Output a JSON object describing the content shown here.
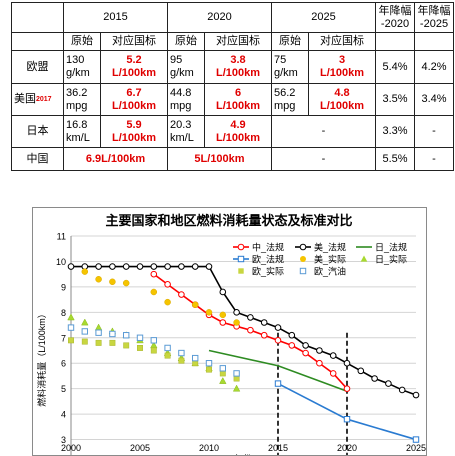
{
  "table": {
    "headers": {
      "y2015": "2015",
      "y2020": "2020",
      "y2025": "2025",
      "rate2020": [
        "年降幅",
        "-2020"
      ],
      "rate2025": [
        "年降幅",
        "-2025"
      ]
    },
    "subheaders": {
      "orig": "原始",
      "target": "对应国标"
    },
    "rows": {
      "eu": {
        "name": "欧盟",
        "o2015": [
          "130",
          "g/km"
        ],
        "t2015": [
          "5.2",
          "L/100km"
        ],
        "o2020": [
          "95",
          "g/km"
        ],
        "t2020": [
          "3.8",
          "L/100km"
        ],
        "o2025": [
          "75",
          "g/km"
        ],
        "t2025": [
          "3",
          "L/100km"
        ],
        "r2020": "5.4%",
        "r2025": "4.2%"
      },
      "us": {
        "name": "美国",
        "sup": "2017",
        "o2015": [
          "36.2",
          "mpg"
        ],
        "t2015": [
          "6.7",
          "L/100km"
        ],
        "o2020": [
          "44.8",
          "mpg"
        ],
        "t2020": [
          "6",
          "L/100km"
        ],
        "o2025": [
          "56.2",
          "mpg"
        ],
        "t2025": [
          "4.8",
          "L/100km"
        ],
        "r2020": "3.5%",
        "r2025": "3.4%"
      },
      "jp": {
        "name": "日本",
        "o2015": [
          "16.8",
          "km/L"
        ],
        "t2015": [
          "5.9",
          "L/100km"
        ],
        "o2020": [
          "20.3",
          "km/L"
        ],
        "t2020": [
          "4.9",
          "L/100km"
        ],
        "t2025": "-",
        "r2020": "3.3%",
        "r2025": "-"
      },
      "cn": {
        "name": "中国",
        "t2015": "6.9L/100km",
        "t2020": "5L/100km",
        "t2025": "-",
        "r2020": "5.5%",
        "r2025": "-"
      }
    }
  },
  "chart_data": {
    "type": "line",
    "title": "主要国家和地区燃料消耗量状态及标准对比",
    "xlabel": "年份",
    "ylabel": "燃料消耗量（L/100km）",
    "xlim": [
      2000,
      2025
    ],
    "ylim": [
      2,
      11
    ],
    "xticks": [
      2000,
      2005,
      2010,
      2015,
      2020,
      2025
    ],
    "yticks": [
      3,
      4,
      5,
      6,
      7,
      8,
      9,
      10,
      11
    ],
    "vlines": [
      2015,
      2020
    ],
    "legend_position": "top-right",
    "series": [
      {
        "name": "中_法规",
        "color": "#ff0000",
        "marker": "circle-open",
        "line": true,
        "points": [
          [
            2006,
            9.5
          ],
          [
            2007,
            9.1
          ],
          [
            2008,
            8.7
          ],
          [
            2009,
            8.3
          ],
          [
            2010,
            7.9
          ],
          [
            2011,
            7.6
          ],
          [
            2012,
            7.45
          ],
          [
            2013,
            7.3
          ],
          [
            2014,
            7.1
          ],
          [
            2015,
            6.9
          ],
          [
            2016,
            6.7
          ],
          [
            2017,
            6.4
          ],
          [
            2018,
            6.0
          ],
          [
            2019,
            5.6
          ],
          [
            2020,
            5.0
          ]
        ]
      },
      {
        "name": "美_法规",
        "color": "#000000",
        "marker": "circle-open",
        "line": true,
        "points": [
          [
            2000,
            9.8
          ],
          [
            2001,
            9.8
          ],
          [
            2002,
            9.8
          ],
          [
            2003,
            9.8
          ],
          [
            2004,
            9.8
          ],
          [
            2005,
            9.8
          ],
          [
            2006,
            9.8
          ],
          [
            2007,
            9.8
          ],
          [
            2008,
            9.8
          ],
          [
            2009,
            9.8
          ],
          [
            2010,
            9.8
          ],
          [
            2011,
            8.8
          ],
          [
            2012,
            8.0
          ],
          [
            2013,
            7.8
          ],
          [
            2014,
            7.6
          ],
          [
            2015,
            7.4
          ],
          [
            2016,
            7.1
          ],
          [
            2017,
            6.7
          ],
          [
            2018,
            6.5
          ],
          [
            2019,
            6.3
          ],
          [
            2020,
            6.0
          ],
          [
            2021,
            5.7
          ],
          [
            2022,
            5.4
          ],
          [
            2023,
            5.2
          ],
          [
            2024,
            4.95
          ],
          [
            2025,
            4.75
          ]
        ]
      },
      {
        "name": "日_法规",
        "color": "#2e8b22",
        "marker": "none",
        "line": true,
        "points": [
          [
            2010,
            6.5
          ],
          [
            2015,
            5.9
          ],
          [
            2020,
            4.9
          ]
        ]
      },
      {
        "name": "欧_法规",
        "color": "#2a7bd1",
        "marker": "square-open",
        "line": true,
        "points": [
          [
            2015,
            5.2
          ],
          [
            2020,
            3.8
          ],
          [
            2025,
            3.0
          ]
        ]
      },
      {
        "name": "美_实际",
        "color": "#f5c400",
        "marker": "circle-filled",
        "line": false,
        "points": [
          [
            2001,
            9.6
          ],
          [
            2002,
            9.3
          ],
          [
            2003,
            9.2
          ],
          [
            2004,
            9.15
          ],
          [
            2006,
            8.8
          ],
          [
            2007,
            8.4
          ],
          [
            2009,
            8.3
          ],
          [
            2010,
            8.0
          ],
          [
            2011,
            7.9
          ],
          [
            2012,
            7.6
          ]
        ]
      },
      {
        "name": "日_实际",
        "color": "#a8d930",
        "marker": "triangle-filled",
        "line": false,
        "points": [
          [
            2000,
            7.8
          ],
          [
            2001,
            7.6
          ],
          [
            2002,
            7.4
          ],
          [
            2003,
            7.25
          ],
          [
            2004,
            7.1
          ],
          [
            2005,
            6.9
          ],
          [
            2006,
            6.7
          ],
          [
            2007,
            6.4
          ],
          [
            2008,
            6.2
          ],
          [
            2009,
            6.0
          ],
          [
            2010,
            5.8
          ],
          [
            2011,
            5.3
          ],
          [
            2012,
            5.0
          ]
        ]
      },
      {
        "name": "欧_实际",
        "color": "#c8d640",
        "marker": "square-filled",
        "line": false,
        "points": [
          [
            2000,
            6.9
          ],
          [
            2001,
            6.85
          ],
          [
            2002,
            6.8
          ],
          [
            2003,
            6.8
          ],
          [
            2004,
            6.7
          ],
          [
            2005,
            6.6
          ],
          [
            2006,
            6.5
          ],
          [
            2007,
            6.3
          ],
          [
            2008,
            6.1
          ],
          [
            2009,
            6.0
          ],
          [
            2010,
            5.75
          ],
          [
            2011,
            5.6
          ],
          [
            2012,
            5.4
          ]
        ]
      },
      {
        "name": "欧_汽油",
        "color": "#5b9bd5",
        "marker": "square-open",
        "line": false,
        "points": [
          [
            2000,
            7.4
          ],
          [
            2001,
            7.25
          ],
          [
            2002,
            7.2
          ],
          [
            2003,
            7.15
          ],
          [
            2004,
            7.1
          ],
          [
            2005,
            7.0
          ],
          [
            2006,
            6.9
          ],
          [
            2007,
            6.6
          ],
          [
            2008,
            6.4
          ],
          [
            2009,
            6.2
          ],
          [
            2010,
            6.0
          ],
          [
            2011,
            5.8
          ],
          [
            2012,
            5.6
          ]
        ]
      }
    ]
  }
}
